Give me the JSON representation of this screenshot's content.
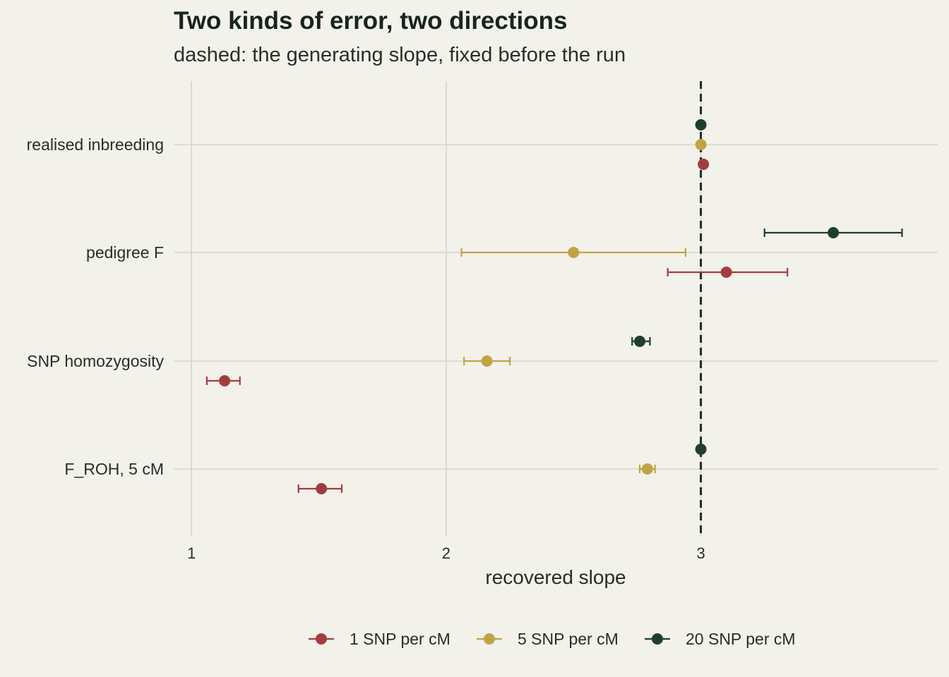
{
  "chart_data": {
    "type": "scatter",
    "title": "Two kinds of error, two directions",
    "subtitle": "dashed: the generating slope, fixed before the run",
    "xlabel": "recovered slope",
    "ylabel": "",
    "xlim": [
      0.93,
      3.93
    ],
    "x_ticks": [
      "1",
      "2",
      "3"
    ],
    "categories": [
      "realised inbreeding",
      "pedigree F",
      "SNP homozygosity",
      "F_ROH, 5 cM"
    ],
    "reference_line": {
      "x": 3,
      "style": "dashed"
    },
    "grid": true,
    "legend_position": "bottom",
    "series": [
      {
        "name": "1 SNP per cM",
        "color": "#a33d3d",
        "points": [
          {
            "category": "realised inbreeding",
            "x": 3.01,
            "lo": null,
            "hi": null
          },
          {
            "category": "pedigree F",
            "x": 3.1,
            "lo": 2.87,
            "hi": 3.34
          },
          {
            "category": "SNP homozygosity",
            "x": 1.13,
            "lo": 1.06,
            "hi": 1.19
          },
          {
            "category": "F_ROH, 5 cM",
            "x": 1.51,
            "lo": 1.42,
            "hi": 1.59
          }
        ]
      },
      {
        "name": "5 SNP per cM",
        "color": "#bfa446",
        "points": [
          {
            "category": "realised inbreeding",
            "x": 3.0,
            "lo": null,
            "hi": null
          },
          {
            "category": "pedigree F",
            "x": 2.5,
            "lo": 2.06,
            "hi": 2.94
          },
          {
            "category": "SNP homozygosity",
            "x": 2.16,
            "lo": 2.07,
            "hi": 2.25
          },
          {
            "category": "F_ROH, 5 cM",
            "x": 2.79,
            "lo": 2.76,
            "hi": 2.82
          }
        ]
      },
      {
        "name": "20 SNP per cM",
        "color": "#1f3f2c",
        "points": [
          {
            "category": "realised inbreeding",
            "x": 3.0,
            "lo": null,
            "hi": null
          },
          {
            "category": "pedigree F",
            "x": 3.52,
            "lo": 3.25,
            "hi": 3.79
          },
          {
            "category": "SNP homozygosity",
            "x": 2.76,
            "lo": 2.73,
            "hi": 2.8
          },
          {
            "category": "F_ROH, 5 cM",
            "x": 3.0,
            "lo": null,
            "hi": null
          }
        ]
      }
    ]
  }
}
